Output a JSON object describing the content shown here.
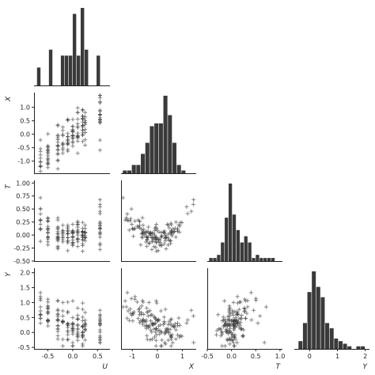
{
  "chart_data": {
    "type": "scatter",
    "kind": "corner pair plot",
    "variables": [
      "U",
      "X",
      "T",
      "Y"
    ],
    "diagonal": "histogram",
    "off_diagonal": "scatter",
    "marker": "+",
    "colors": {
      "bar": "#3a3a3a",
      "point": "#333333",
      "axis": "#222222"
    },
    "x_axis_labels": [
      "U",
      "X",
      "T",
      "Y"
    ],
    "y_axis_labels": [
      "X",
      "T",
      "Y"
    ],
    "axis_ranges": {
      "U": [
        -0.78,
        0.75
      ],
      "X": [
        -1.45,
        1.55
      ],
      "T": [
        -0.5,
        1.05
      ],
      "Y": [
        -0.55,
        2.15
      ]
    },
    "ticks": {
      "U": [
        "-0.5",
        "0.0",
        "0.5"
      ],
      "X": [
        "-1",
        "0",
        "1"
      ],
      "T": [
        "-0.5",
        "0.0",
        "0.5",
        "1.0"
      ],
      "Y": [
        "0",
        "1",
        "2"
      ],
      "X_left": [
        "-1.0",
        "-0.5",
        "0.0",
        "0.5",
        "1.0"
      ],
      "T_left": [
        "-0.50",
        "-0.25",
        "0.00",
        "0.25",
        "0.50",
        "0.75",
        "1.00"
      ],
      "Y_left": [
        "-0.5",
        "0.0",
        "0.5",
        "1.0",
        "1.5",
        "2.0"
      ]
    },
    "histograms": {
      "U": {
        "edges": [
          -0.72,
          -0.64,
          -0.56,
          -0.48,
          -0.4,
          -0.32,
          -0.24,
          -0.16,
          -0.08,
          0.0,
          0.08,
          0.16,
          0.24,
          0.32,
          0.4,
          0.48,
          0.56,
          0.64
        ],
        "counts": [
          3,
          0,
          0,
          6,
          0,
          0,
          5,
          5,
          5,
          12,
          5,
          13,
          6,
          0,
          0,
          5,
          0
        ]
      },
      "X": {
        "edges": [
          -1.38,
          -1.2,
          -1.02,
          -0.84,
          -0.66,
          -0.48,
          -0.3,
          -0.12,
          0.06,
          0.24,
          0.42,
          0.6,
          0.78,
          0.96,
          1.14,
          1.32,
          1.5
        ],
        "counts": [
          1,
          1,
          3,
          3,
          7,
          11,
          17,
          18,
          18,
          28,
          21,
          11,
          3,
          1,
          0,
          0
        ]
      },
      "T": {
        "edges": [
          -0.46,
          -0.38,
          -0.3,
          -0.22,
          -0.14,
          -0.06,
          0.02,
          0.1,
          0.18,
          0.26,
          0.34,
          0.42,
          0.5,
          0.58,
          0.66,
          0.74,
          0.82,
          0.9
        ],
        "counts": [
          1,
          1,
          2,
          6,
          14,
          25,
          15,
          10,
          6,
          8,
          6,
          1,
          2,
          1,
          1,
          1,
          1
        ]
      },
      "Y": {
        "edges": [
          -0.4,
          -0.24,
          -0.08,
          0.08,
          0.24,
          0.4,
          0.56,
          0.72,
          0.88,
          1.04,
          1.2,
          1.36,
          1.52,
          1.68,
          1.84,
          2.0
        ],
        "counts": [
          3,
          10,
          22,
          30,
          24,
          20,
          10,
          8,
          4,
          3,
          2,
          1,
          0,
          1,
          1
        ]
      }
    }
  }
}
